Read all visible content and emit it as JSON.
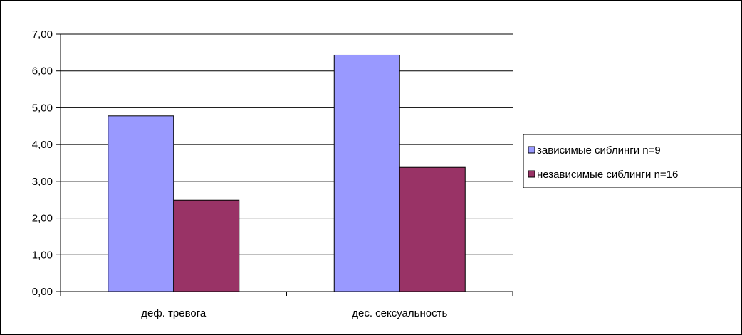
{
  "chart_data": {
    "type": "bar",
    "title": "",
    "xlabel": "",
    "ylabel": "",
    "categories": [
      "деф. тревога",
      "дес. сексуальность"
    ],
    "series": [
      {
        "name": "зависимые сиблинги n=9",
        "values": [
          4.78,
          6.43
        ],
        "color": "#9999ff"
      },
      {
        "name": "независимые сиблинги n=16",
        "values": [
          2.49,
          3.38
        ],
        "color": "#993366"
      }
    ],
    "ylim": [
      0,
      7
    ],
    "ytick_step": 1,
    "ytick_labels": [
      "0,00",
      "1,00",
      "2,00",
      "3,00",
      "4,00",
      "5,00",
      "6,00",
      "7,00"
    ],
    "grid": true,
    "legend_position": "right"
  }
}
